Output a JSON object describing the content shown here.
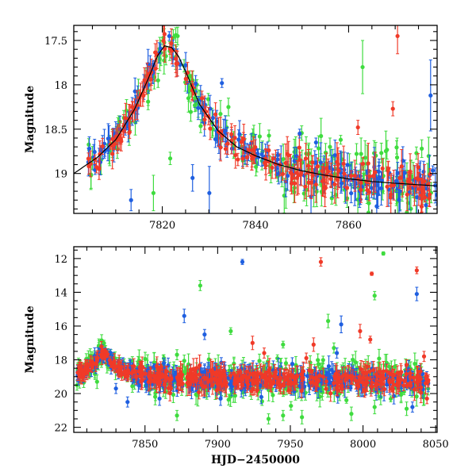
{
  "chart_data": [
    {
      "type": "scatter",
      "title": "",
      "xlabel": "",
      "ylabel": "Magnitude",
      "xlim": [
        7801,
        7879
      ],
      "ylim": [
        19.45,
        17.33
      ],
      "y_inverted": true,
      "xticks": [
        7820,
        7840,
        7860
      ],
      "xtick_labels": [
        "7820",
        "7840",
        "7860"
      ],
      "yticks": [
        17.5,
        18,
        18.5,
        19
      ],
      "ytick_labels": [
        "17.5",
        "18",
        "18.5",
        "19"
      ],
      "grid": false,
      "legend": "none",
      "colors": {
        "blue": "#1f5fe0",
        "red": "#f03a28",
        "green": "#3fdc3f",
        "model": "#000000"
      },
      "model_curve": {
        "x": [
          7801,
          7806,
          7810,
          7814,
          7817,
          7819,
          7820.5,
          7822,
          7823.5,
          7825,
          7828,
          7832,
          7836,
          7840,
          7845,
          7850,
          7855,
          7860,
          7865,
          7870,
          7879
        ],
        "y": [
          19.0,
          18.82,
          18.62,
          18.28,
          17.93,
          17.67,
          17.56,
          17.58,
          17.68,
          17.85,
          18.22,
          18.52,
          18.7,
          18.8,
          18.9,
          18.97,
          19.02,
          19.06,
          19.09,
          19.11,
          19.14
        ]
      },
      "outliers": [
        {
          "series": "green",
          "x": 7818.1,
          "y": 19.22,
          "err": 0.2
        },
        {
          "series": "green",
          "x": 7821.7,
          "y": 18.83,
          "err": 0.07
        },
        {
          "series": "green",
          "x": 7819.1,
          "y": 17.95,
          "err": 0.08
        },
        {
          "series": "green",
          "x": 7823.3,
          "y": 17.45,
          "err": 0.1
        },
        {
          "series": "green",
          "x": 7827.0,
          "y": 18.15,
          "err": 0.1
        },
        {
          "series": "green",
          "x": 7834.2,
          "y": 18.25,
          "err": 0.1
        },
        {
          "series": "green",
          "x": 7856.0,
          "y": 18.7,
          "err": 0.1
        },
        {
          "series": "green",
          "x": 7858.3,
          "y": 18.62,
          "err": 0.05
        },
        {
          "series": "green",
          "x": 7863.0,
          "y": 17.8,
          "err": 0.3
        },
        {
          "series": "green",
          "x": 7875.7,
          "y": 18.72,
          "err": 0.1
        },
        {
          "series": "blue",
          "x": 7821.5,
          "y": 17.45,
          "err": 0.05
        },
        {
          "series": "blue",
          "x": 7826.5,
          "y": 19.05,
          "err": 0.15
        },
        {
          "series": "blue",
          "x": 7830.1,
          "y": 19.22,
          "err": 0.3
        },
        {
          "series": "blue",
          "x": 7832.8,
          "y": 17.98,
          "err": 0.05
        },
        {
          "series": "blue",
          "x": 7849.5,
          "y": 18.55,
          "err": 0.05
        },
        {
          "series": "blue",
          "x": 7853.0,
          "y": 18.65,
          "err": 0.05
        },
        {
          "series": "blue",
          "x": 7877.6,
          "y": 18.12,
          "err": 0.4
        },
        {
          "series": "blue",
          "x": 7813.3,
          "y": 19.3,
          "err": 0.12
        },
        {
          "series": "red",
          "x": 7862.0,
          "y": 18.48,
          "err": 0.08
        },
        {
          "series": "red",
          "x": 7869.5,
          "y": 18.27,
          "err": 0.08
        },
        {
          "series": "red",
          "x": 7870.5,
          "y": 17.45,
          "err": 0.2
        }
      ]
    },
    {
      "type": "scatter",
      "title": "",
      "xlabel": "HJD−2450000",
      "ylabel": "Magnitude",
      "xlim": [
        7801,
        8051
      ],
      "ylim": [
        22.3,
        11.3
      ],
      "y_inverted": true,
      "xticks": [
        7850,
        7900,
        7950,
        8000,
        8050
      ],
      "xtick_labels": [
        "7850",
        "7900",
        "7950",
        "8000",
        "8050"
      ],
      "yticks": [
        12,
        14,
        16,
        18,
        20,
        22
      ],
      "ytick_labels": [
        "12",
        "14",
        "16",
        "18",
        "20",
        "22"
      ],
      "grid": false,
      "legend": "none",
      "colors": {
        "blue": "#1f5fe0",
        "red": "#f03a28",
        "green": "#3fdc3f"
      },
      "outliers": [
        {
          "series": "blue",
          "x": 7917,
          "y": 12.2,
          "err": 0.15
        },
        {
          "series": "red",
          "x": 7971,
          "y": 12.2,
          "err": 0.25
        },
        {
          "series": "green",
          "x": 8014,
          "y": 11.7,
          "err": 0.1
        },
        {
          "series": "red",
          "x": 8006,
          "y": 12.9,
          "err": 0.1
        },
        {
          "series": "red",
          "x": 8037,
          "y": 12.7,
          "err": 0.2
        },
        {
          "series": "green",
          "x": 7888,
          "y": 13.6,
          "err": 0.3
        },
        {
          "series": "green",
          "x": 8008,
          "y": 14.2,
          "err": 0.25
        },
        {
          "series": "blue",
          "x": 8037,
          "y": 14.1,
          "err": 0.4
        },
        {
          "series": "blue",
          "x": 7877,
          "y": 15.4,
          "err": 0.4
        },
        {
          "series": "green",
          "x": 7976,
          "y": 15.7,
          "err": 0.4
        },
        {
          "series": "blue",
          "x": 7985,
          "y": 15.9,
          "err": 0.5
        },
        {
          "series": "red",
          "x": 7998,
          "y": 16.3,
          "err": 0.4
        },
        {
          "series": "green",
          "x": 7909,
          "y": 16.3,
          "err": 0.2
        },
        {
          "series": "blue",
          "x": 7891,
          "y": 16.5,
          "err": 0.3
        },
        {
          "series": "red",
          "x": 8005,
          "y": 16.8,
          "err": 0.2
        },
        {
          "series": "red",
          "x": 7924,
          "y": 17.0,
          "err": 0.4
        },
        {
          "series": "green",
          "x": 7945,
          "y": 17.1,
          "err": 0.2
        },
        {
          "series": "red",
          "x": 7966,
          "y": 17.1,
          "err": 0.4
        },
        {
          "series": "green",
          "x": 7980,
          "y": 17.3,
          "err": 0.3
        },
        {
          "series": "red",
          "x": 7932,
          "y": 17.6,
          "err": 0.3
        },
        {
          "series": "blue",
          "x": 7982,
          "y": 17.6,
          "err": 0.3
        },
        {
          "series": "green",
          "x": 7872,
          "y": 17.7,
          "err": 0.3
        },
        {
          "series": "red",
          "x": 8042,
          "y": 17.8,
          "err": 0.3
        },
        {
          "series": "green",
          "x": 7863,
          "y": 17.9,
          "err": 0.2
        },
        {
          "series": "red",
          "x": 7961,
          "y": 17.9,
          "err": 0.3
        },
        {
          "series": "green",
          "x": 7993,
          "y": 18.0,
          "err": 0.3
        },
        {
          "series": "blue",
          "x": 7863,
          "y": 18.2,
          "err": 0.3
        },
        {
          "series": "green",
          "x": 7947,
          "y": 18.2,
          "err": 0.3
        },
        {
          "series": "red",
          "x": 8030,
          "y": 18.3,
          "err": 0.3
        },
        {
          "series": "green",
          "x": 8018,
          "y": 18.4,
          "err": 0.2
        },
        {
          "series": "red",
          "x": 8003,
          "y": 18.4,
          "err": 0.3
        },
        {
          "series": "green",
          "x": 7817,
          "y": 19.3,
          "err": 0.4
        },
        {
          "series": "blue",
          "x": 7830,
          "y": 19.7,
          "err": 0.3
        },
        {
          "series": "green",
          "x": 7935,
          "y": 21.5,
          "err": 0.3
        },
        {
          "series": "green",
          "x": 7945,
          "y": 21.3,
          "err": 0.3
        },
        {
          "series": "green",
          "x": 7958,
          "y": 21.4,
          "err": 0.4
        },
        {
          "series": "green",
          "x": 7992,
          "y": 21.2,
          "err": 0.4
        },
        {
          "series": "green",
          "x": 7872,
          "y": 21.3,
          "err": 0.3
        },
        {
          "series": "green",
          "x": 8008,
          "y": 20.8,
          "err": 0.4
        },
        {
          "series": "green",
          "x": 8030,
          "y": 20.9,
          "err": 0.4
        },
        {
          "series": "blue",
          "x": 7902,
          "y": 20.3,
          "err": 0.4
        },
        {
          "series": "blue",
          "x": 7930,
          "y": 20.2,
          "err": 0.4
        },
        {
          "series": "blue",
          "x": 8034,
          "y": 20.8,
          "err": 0.3
        },
        {
          "series": "red",
          "x": 8044,
          "y": 20.3,
          "err": 0.3
        },
        {
          "series": "blue",
          "x": 7838,
          "y": 20.5,
          "err": 0.3
        },
        {
          "series": "blue",
          "x": 7860,
          "y": 20.3,
          "err": 0.4
        }
      ]
    }
  ]
}
